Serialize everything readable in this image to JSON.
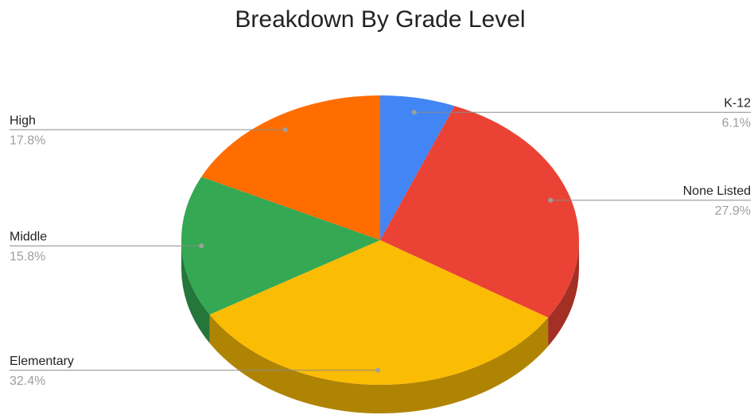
{
  "chart_data": {
    "type": "pie",
    "title": "Breakdown By Grade Level",
    "categories": [
      "K-12",
      "None Listed",
      "Elementary",
      "Middle",
      "High"
    ],
    "values": [
      6.1,
      27.9,
      32.4,
      15.8,
      17.8
    ],
    "value_labels": [
      "6.1%",
      "27.9%",
      "32.4%",
      "15.8%",
      "17.8%"
    ],
    "colors": [
      "#4285f4",
      "#ea4335",
      "#fbbc04",
      "#34a853",
      "#ff6d01"
    ],
    "three_d": true
  }
}
